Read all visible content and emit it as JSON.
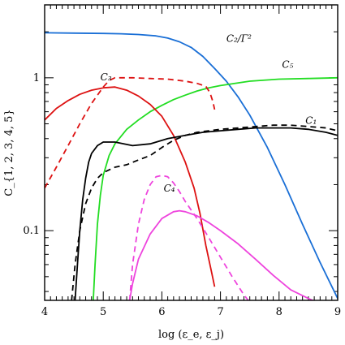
{
  "chart_data": {
    "type": "line",
    "xlabel": "log (ε_e, ε_j)",
    "ylabel": "C_{1, 2, 3, 4, 5}",
    "xlim": [
      4,
      9
    ],
    "ylim": [
      0.035,
      3
    ],
    "y_scale": "log",
    "grid": false,
    "x_ticks": [
      {
        "value": 4,
        "label": "4"
      },
      {
        "value": 5,
        "label": "5"
      },
      {
        "value": 6,
        "label": "6"
      },
      {
        "value": 7,
        "label": "7"
      },
      {
        "value": 8,
        "label": "8"
      },
      {
        "value": 9,
        "label": "9"
      }
    ],
    "y_ticks": [
      {
        "value": 0.1,
        "label": "0.1"
      },
      {
        "value": 1,
        "label": "1"
      }
    ],
    "series": [
      {
        "label": "C2/Γ²",
        "color": "#1a6fd6",
        "dash": "solid",
        "x": [
          4.0,
          4.5,
          5.0,
          5.3,
          5.6,
          5.9,
          6.1,
          6.3,
          6.5,
          6.7,
          6.9,
          7.1,
          7.3,
          7.5,
          7.8,
          8.1,
          8.4,
          8.7,
          9.0
        ],
        "y": [
          1.97,
          1.96,
          1.95,
          1.94,
          1.92,
          1.88,
          1.82,
          1.72,
          1.58,
          1.38,
          1.15,
          0.95,
          0.75,
          0.57,
          0.35,
          0.2,
          0.11,
          0.062,
          0.036
        ]
      },
      {
        "label": "C5",
        "color": "#22dd22",
        "dash": "solid",
        "x": [
          4.83,
          4.86,
          4.9,
          4.95,
          5.0,
          5.1,
          5.2,
          5.4,
          5.6,
          5.8,
          6.0,
          6.2,
          6.4,
          6.6,
          6.8,
          7.0,
          7.5,
          8.0,
          8.5,
          9.0
        ],
        "y": [
          0.035,
          0.06,
          0.11,
          0.17,
          0.23,
          0.31,
          0.37,
          0.46,
          0.53,
          0.6,
          0.66,
          0.72,
          0.77,
          0.82,
          0.86,
          0.89,
          0.95,
          0.98,
          0.99,
          1.0
        ]
      },
      {
        "label": "C3",
        "color": "#dd1111",
        "dash": "solid",
        "x": [
          4.0,
          4.2,
          4.4,
          4.6,
          4.8,
          5.0,
          5.2,
          5.4,
          5.6,
          5.8,
          6.0,
          6.2,
          6.4,
          6.55,
          6.65,
          6.75,
          6.85,
          6.9
        ],
        "y": [
          0.53,
          0.63,
          0.71,
          0.78,
          0.83,
          0.86,
          0.87,
          0.83,
          0.76,
          0.67,
          0.56,
          0.42,
          0.28,
          0.19,
          0.13,
          0.08,
          0.053,
          0.043
        ]
      },
      {
        "label": "C3 (dashed)",
        "color": "#dd1111",
        "dash": "dashed",
        "x": [
          4.0,
          4.2,
          4.4,
          4.6,
          4.8,
          5.0,
          5.1,
          5.2,
          5.5,
          5.8,
          6.1,
          6.4,
          6.6,
          6.75,
          6.82,
          6.87,
          6.9
        ],
        "y": [
          0.19,
          0.26,
          0.36,
          0.5,
          0.68,
          0.87,
          0.96,
          1.0,
          1.0,
          0.99,
          0.98,
          0.95,
          0.92,
          0.88,
          0.8,
          0.7,
          0.62
        ]
      },
      {
        "label": "C1",
        "color": "#000000",
        "dash": "solid",
        "x": [
          4.52,
          4.56,
          4.6,
          4.65,
          4.7,
          4.75,
          4.8,
          4.9,
          5.0,
          5.2,
          5.5,
          5.8,
          6.1,
          6.4,
          6.7,
          7.0,
          7.3,
          7.6,
          7.9,
          8.2,
          8.5,
          8.8,
          9.0
        ],
        "y": [
          0.035,
          0.06,
          0.1,
          0.16,
          0.22,
          0.28,
          0.32,
          0.36,
          0.38,
          0.38,
          0.36,
          0.37,
          0.4,
          0.42,
          0.44,
          0.45,
          0.46,
          0.47,
          0.47,
          0.47,
          0.46,
          0.44,
          0.42
        ]
      },
      {
        "label": "C1 (dashed)",
        "color": "#000000",
        "dash": "dashed",
        "x": [
          4.46,
          4.52,
          4.6,
          4.7,
          4.8,
          4.9,
          5.0,
          5.2,
          5.4,
          5.6,
          5.8,
          6.0,
          6.2,
          6.4,
          6.6,
          6.8,
          7.0,
          7.3,
          7.6,
          7.9,
          8.2,
          8.5,
          8.8,
          9.0
        ],
        "y": [
          0.035,
          0.06,
          0.1,
          0.15,
          0.19,
          0.22,
          0.24,
          0.26,
          0.27,
          0.29,
          0.31,
          0.35,
          0.39,
          0.42,
          0.44,
          0.45,
          0.46,
          0.47,
          0.48,
          0.49,
          0.49,
          0.48,
          0.47,
          0.45
        ]
      },
      {
        "label": "C4",
        "color": "#ee44dd",
        "dash": "dashed",
        "x": [
          5.45,
          5.5,
          5.6,
          5.7,
          5.8,
          5.9,
          6.0,
          6.1,
          6.2,
          6.3,
          6.4,
          6.6,
          6.8,
          7.0,
          7.2,
          7.4,
          7.5
        ],
        "y": [
          0.035,
          0.06,
          0.11,
          0.16,
          0.2,
          0.225,
          0.23,
          0.225,
          0.205,
          0.18,
          0.155,
          0.12,
          0.09,
          0.067,
          0.05,
          0.038,
          0.034
        ]
      },
      {
        "label": "C4 (solid)",
        "color": "#ee44dd",
        "dash": "solid",
        "x": [
          5.45,
          5.5,
          5.6,
          5.8,
          6.0,
          6.2,
          6.3,
          6.4,
          6.6,
          6.8,
          7.0,
          7.3,
          7.6,
          7.9,
          8.2,
          8.5,
          8.65
        ],
        "y": [
          0.035,
          0.045,
          0.065,
          0.095,
          0.12,
          0.133,
          0.135,
          0.133,
          0.125,
          0.113,
          0.1,
          0.082,
          0.065,
          0.051,
          0.041,
          0.036,
          0.034
        ]
      }
    ],
    "annotations": [
      {
        "text": "C₂/Γ²",
        "x": 7.1,
        "y": 1.72
      },
      {
        "text": "C₅",
        "x": 8.05,
        "y": 1.16
      },
      {
        "text": "C₃",
        "x": 4.95,
        "y": 0.96
      },
      {
        "text": "C₁",
        "x": 8.45,
        "y": 0.5
      },
      {
        "text": "C₄",
        "x": 6.03,
        "y": 0.18
      }
    ]
  }
}
